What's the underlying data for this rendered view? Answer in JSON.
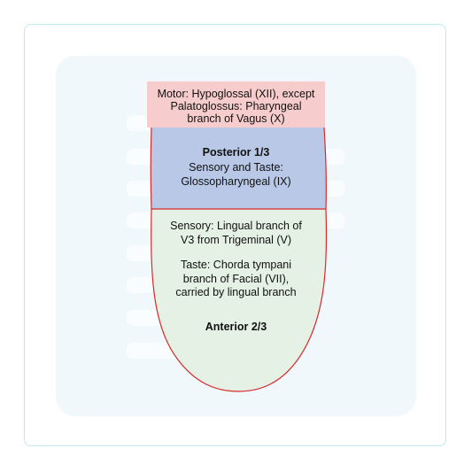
{
  "colors": {
    "frame_border": "#bfe9ef",
    "panel_background": "#f1f8fc",
    "motor_fill": "#f6cccc",
    "posterior_fill": "#b8c8e6",
    "anterior_fill": "#e4f1e4",
    "outline": "#d62b2b"
  },
  "motor": {
    "line1": "Motor: Hypoglossal (XII), except",
    "line2": "Palatoglossus: Pharyngeal",
    "line3": "branch of Vagus (X)"
  },
  "posterior": {
    "title": "Posterior 1/3",
    "line1": "Sensory and Taste:",
    "line2": "Glossopharyngeal (IX)"
  },
  "anterior": {
    "sensory_line1": "Sensory: Lingual branch of",
    "sensory_line2": "V3 from Trigeminal (V)",
    "taste_line1": "Taste: Chorda tympani",
    "taste_line2": "branch of Facial (VII),",
    "taste_line3": "carried by lingual branch",
    "title": "Anterior 2/3"
  }
}
